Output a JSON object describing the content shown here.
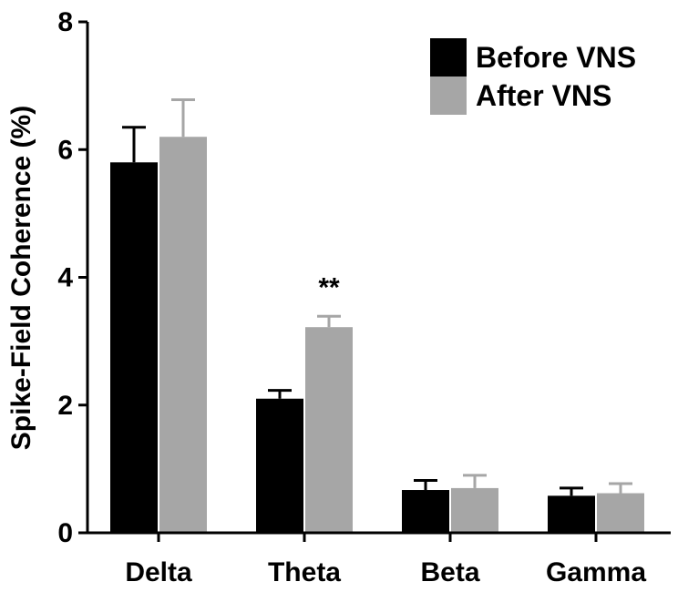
{
  "chart_data": {
    "type": "bar",
    "title": "",
    "xlabel": "",
    "ylabel": "Spike-Field Coherence (%)",
    "ylim": [
      0,
      8
    ],
    "yticks": [
      0,
      2,
      4,
      6,
      8
    ],
    "categories": [
      "Delta",
      "Theta",
      "Beta",
      "Gamma"
    ],
    "series": [
      {
        "name": "Before VNS",
        "color": "#000000",
        "values": [
          5.8,
          2.1,
          0.67,
          0.58
        ],
        "errors": [
          0.55,
          0.13,
          0.15,
          0.12
        ]
      },
      {
        "name": "After VNS",
        "color": "#a6a6a6",
        "values": [
          6.2,
          3.22,
          0.7,
          0.62
        ],
        "errors": [
          0.58,
          0.17,
          0.2,
          0.15
        ]
      }
    ],
    "annotations": [
      {
        "category": "Theta",
        "series": "After VNS",
        "text": "**"
      }
    ],
    "legend_position": "top-right",
    "grid": false
  }
}
